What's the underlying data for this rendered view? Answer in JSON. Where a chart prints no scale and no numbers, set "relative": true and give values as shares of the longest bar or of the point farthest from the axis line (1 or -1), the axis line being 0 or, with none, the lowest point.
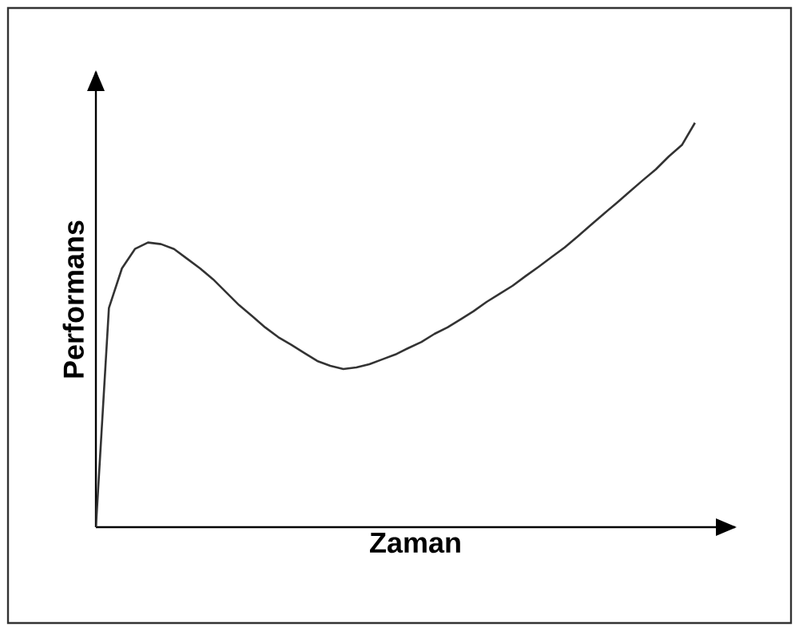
{
  "chart_data": {
    "type": "line",
    "relative": true,
    "xlabel": "Zaman",
    "ylabel": "Performans",
    "marker": "none",
    "line_style": "solid",
    "categories": [
      null,
      null,
      null,
      null,
      null,
      null,
      null,
      null,
      null,
      null,
      null,
      null,
      null,
      null,
      null,
      null,
      null,
      null,
      null,
      null,
      null,
      null,
      null,
      null,
      null,
      null,
      null,
      null,
      null,
      null,
      null,
      null,
      null,
      null,
      null,
      null,
      null,
      null,
      null,
      null,
      null,
      null,
      null,
      null,
      null,
      null,
      null
    ],
    "series": [
      {
        "color": "#333333",
        "values": [
          0,
          0.542,
          0.64,
          0.688,
          0.704,
          0.7,
          0.688,
          0.664,
          0.64,
          0.613,
          0.581,
          0.549,
          0.522,
          0.494,
          0.47,
          0.451,
          0.431,
          0.411,
          0.399,
          0.391,
          0.395,
          0.403,
          0.415,
          0.427,
          0.443,
          0.458,
          0.478,
          0.494,
          0.514,
          0.534,
          0.557,
          0.577,
          0.597,
          0.621,
          0.644,
          0.668,
          0.692,
          0.719,
          0.747,
          0.775,
          0.802,
          0.83,
          0.858,
          0.885,
          0.917,
          0.945,
          1
        ]
      }
    ]
  }
}
